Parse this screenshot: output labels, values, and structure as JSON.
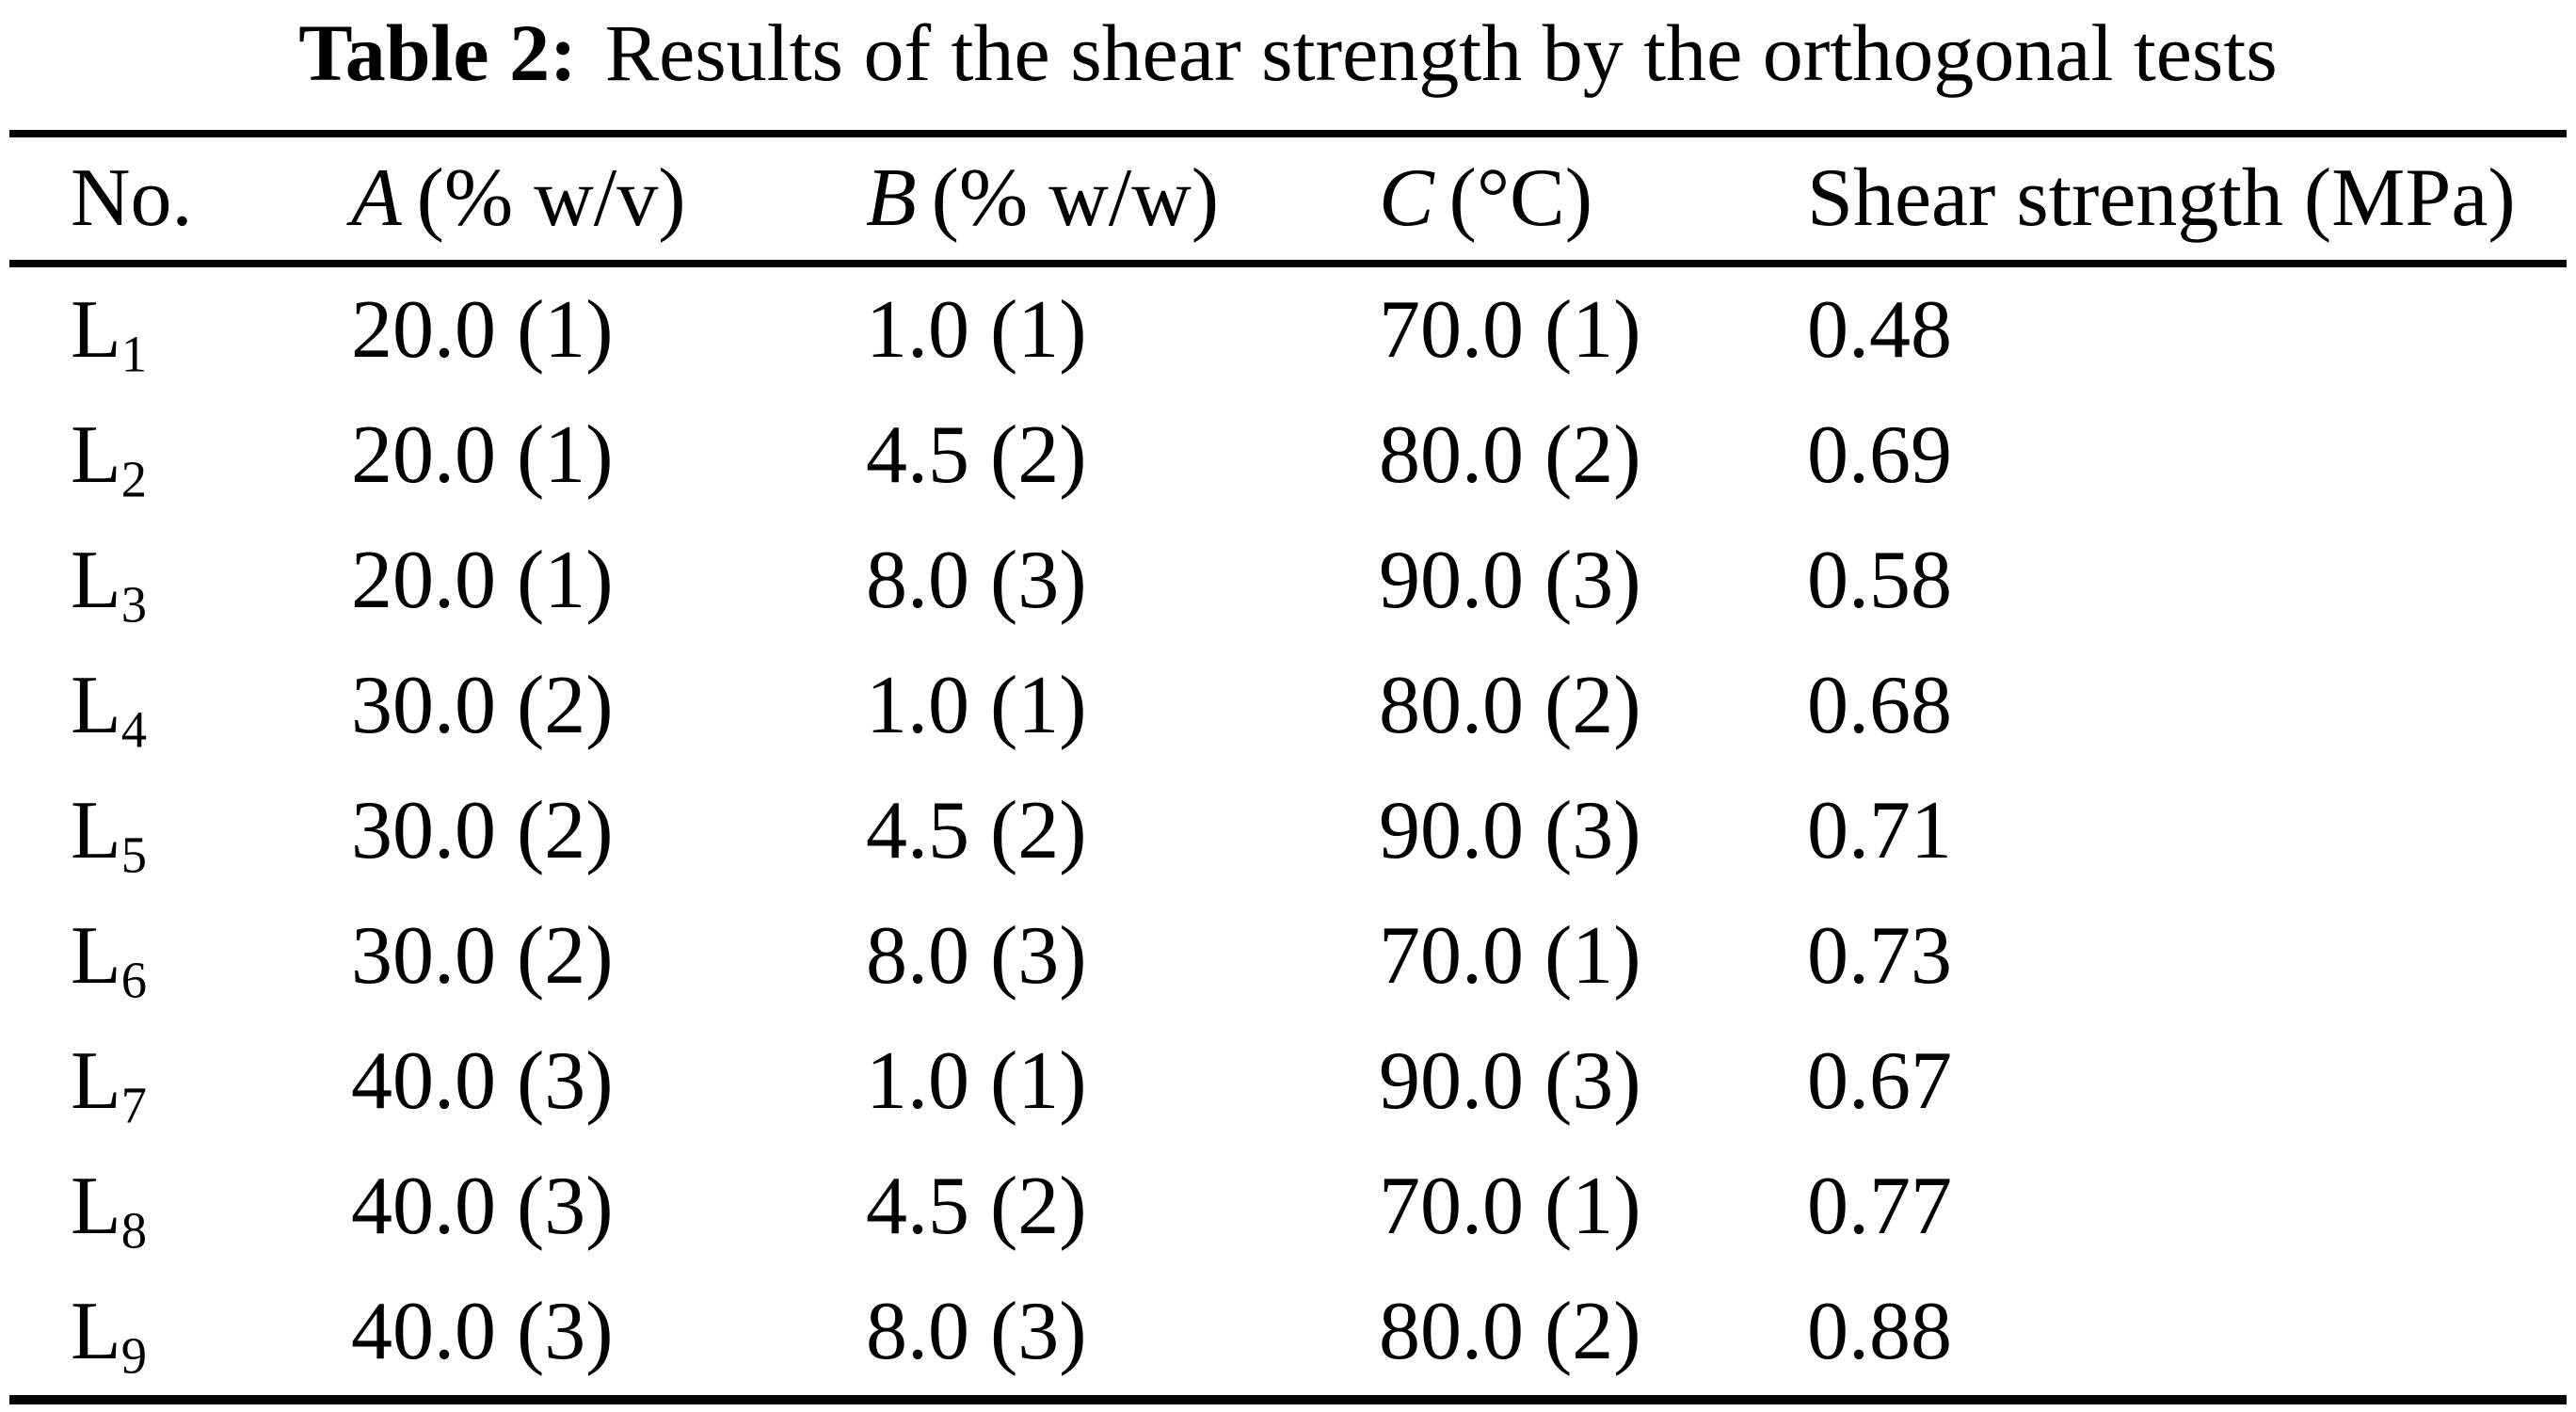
{
  "title": {
    "prefix": "Table 2:",
    "text": "Results of the shear strength by the orthogonal tests"
  },
  "table": {
    "headers": {
      "no": "No.",
      "a_letter": "A",
      "a_unit": "(% w/v)",
      "b_letter": "B",
      "b_unit": "(% w/w)",
      "c_letter": "C",
      "c_unit": "(°C)",
      "shear": "Shear strength (MPa)"
    },
    "rows": [
      {
        "label": "L",
        "sub": "1",
        "a": "20.0 (1)",
        "b": "1.0 (1)",
        "c": "70.0 (1)",
        "shear": "0.48"
      },
      {
        "label": "L",
        "sub": "2",
        "a": "20.0 (1)",
        "b": "4.5 (2)",
        "c": "80.0 (2)",
        "shear": "0.69"
      },
      {
        "label": "L",
        "sub": "3",
        "a": "20.0 (1)",
        "b": "8.0 (3)",
        "c": "90.0 (3)",
        "shear": "0.58"
      },
      {
        "label": "L",
        "sub": "4",
        "a": "30.0 (2)",
        "b": "1.0 (1)",
        "c": "80.0 (2)",
        "shear": "0.68"
      },
      {
        "label": "L",
        "sub": "5",
        "a": "30.0 (2)",
        "b": "4.5 (2)",
        "c": "90.0 (3)",
        "shear": "0.71"
      },
      {
        "label": "L",
        "sub": "6",
        "a": "30.0 (2)",
        "b": "8.0 (3)",
        "c": "70.0 (1)",
        "shear": "0.73"
      },
      {
        "label": "L",
        "sub": "7",
        "a": "40.0 (3)",
        "b": "1.0 (1)",
        "c": "90.0 (3)",
        "shear": "0.67"
      },
      {
        "label": "L",
        "sub": "8",
        "a": "40.0 (3)",
        "b": "4.5 (2)",
        "c": "70.0 (1)",
        "shear": "0.77"
      },
      {
        "label": "L",
        "sub": "9",
        "a": "40.0 (3)",
        "b": "8.0 (3)",
        "c": "80.0 (2)",
        "shear": "0.88"
      }
    ]
  },
  "colors": {
    "background": "#ffffff",
    "text": "#000000",
    "rule": "#000000"
  }
}
